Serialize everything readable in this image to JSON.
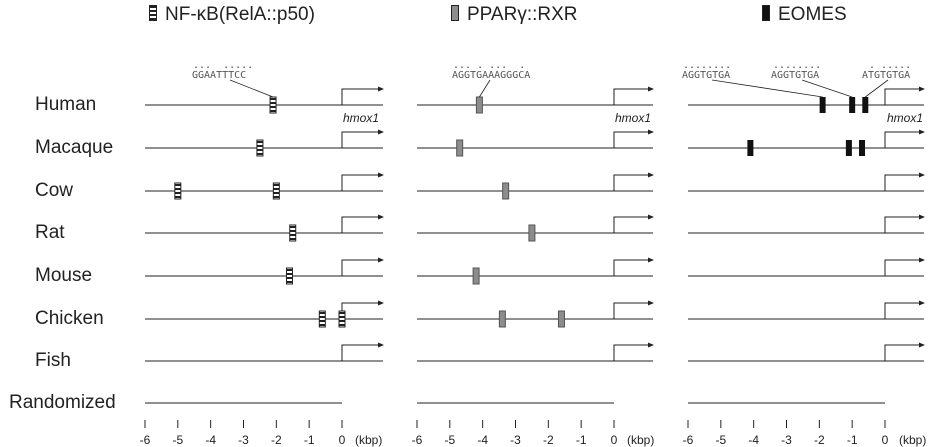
{
  "panels": [
    {
      "title": "NF-κB(RelA::p50)",
      "icon": "striped-site-icon",
      "motif": {
        "dots": "...  .....",
        "sequence": "GGAATTTCC"
      }
    },
    {
      "title": "PPARγ::RXR",
      "icon": "gray-site-icon",
      "motif": {
        "dots": "... . ...  .",
        "sequence": "AGGTGAAAGGGCA"
      }
    },
    {
      "title": "EOMES",
      "icon": "black-site-icon",
      "motifs": [
        {
          "dots": "........",
          "sequence": "AGGTGTGA"
        },
        {
          "dots": "........",
          "sequence": "AGGTGTGA"
        },
        {
          "dots": " . .....",
          "sequence": "ATGTGTGA"
        }
      ]
    }
  ],
  "species": [
    "Human",
    "Macaque",
    "Cow",
    "Rat",
    "Mouse",
    "Chicken",
    "Fish",
    "Randomized"
  ],
  "gene_label": "hmox1",
  "axis": {
    "ticks": [
      "-6",
      "-5",
      "-4",
      "-3",
      "-2",
      "-1",
      "0"
    ],
    "unit": "(kbp)",
    "range_kbp": [
      -6,
      1.2
    ]
  },
  "site_positions_kbp": {
    "NF-κB(RelA::p50)": {
      "Human": [
        -2.1
      ],
      "Macaque": [
        -2.5
      ],
      "Cow": [
        -5.0,
        -2.0
      ],
      "Rat": [
        -1.5
      ],
      "Mouse": [
        -1.6
      ],
      "Chicken": [
        -0.6,
        0.0
      ],
      "Fish": [],
      "Randomized": []
    },
    "PPARγ::RXR": {
      "Human": [
        -4.1
      ],
      "Macaque": [
        -4.7
      ],
      "Cow": [
        -3.3
      ],
      "Rat": [
        -2.5
      ],
      "Mouse": [
        -4.2
      ],
      "Chicken": [
        -3.4,
        -1.6
      ],
      "Fish": [],
      "Randomized": []
    },
    "EOMES": {
      "Human": [
        -1.9,
        -1.0,
        -0.6
      ],
      "Macaque": [
        -4.1,
        -1.1,
        -0.7
      ],
      "Cow": [],
      "Rat": [],
      "Mouse": [],
      "Chicken": [],
      "Fish": [],
      "Randomized": []
    }
  },
  "colors": {
    "nfkb": "#222222",
    "ppar": "#8c8c8c",
    "eomes": "#111111",
    "line": "#222222"
  }
}
